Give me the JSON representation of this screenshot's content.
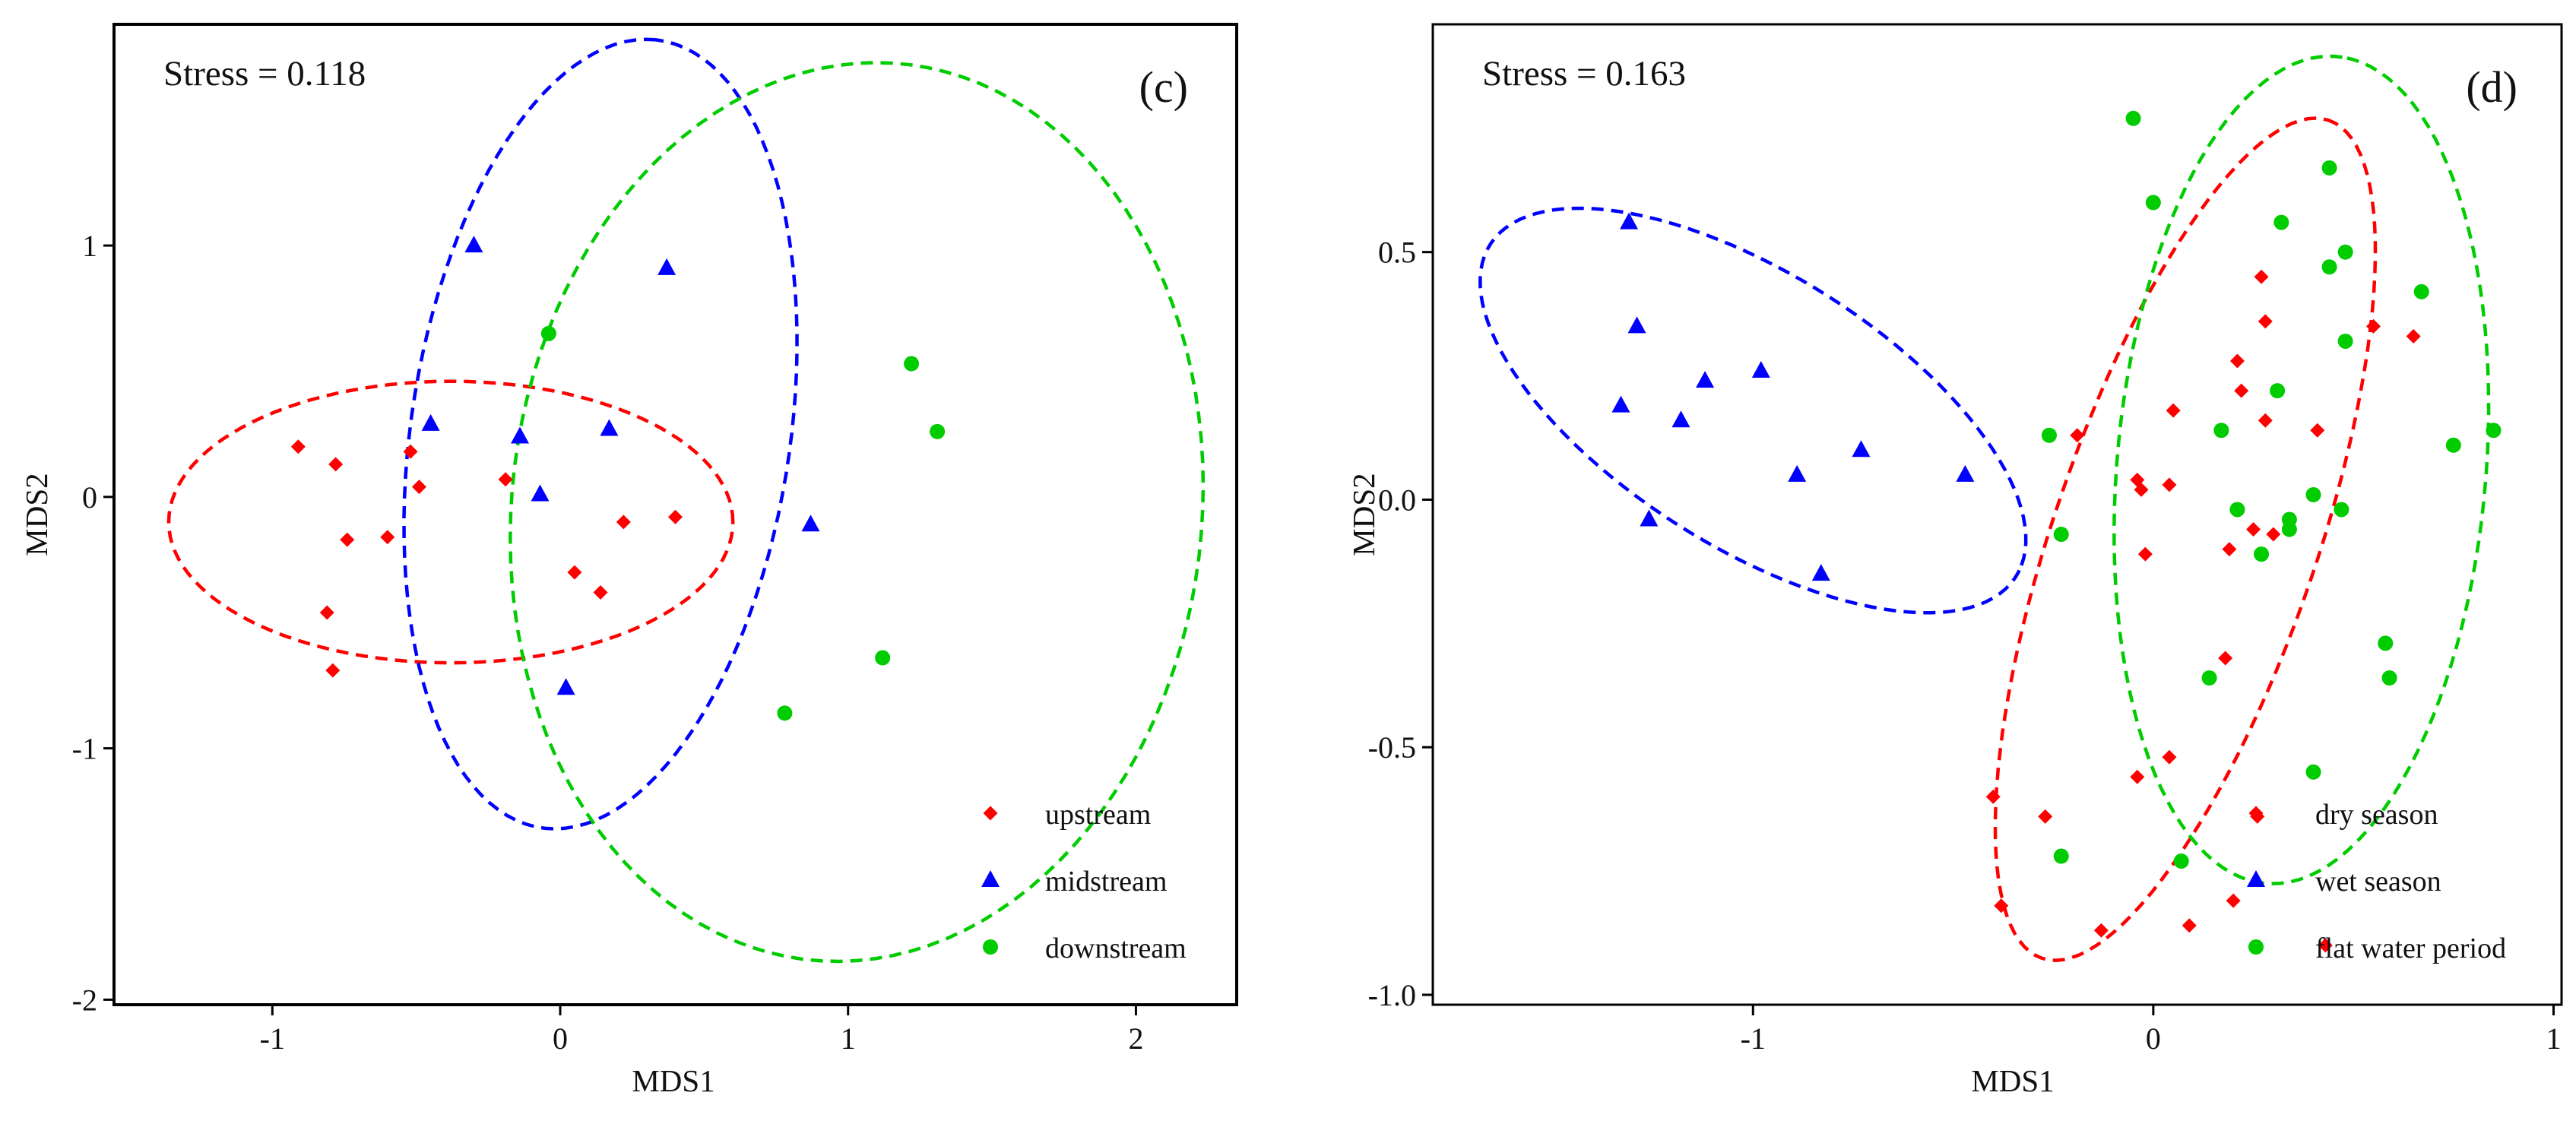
{
  "chart_data": [
    {
      "type": "scatter",
      "panel_label": "(c)",
      "stress_label": "Stress = 0.118",
      "xlabel": "MDS1",
      "ylabel": "MDS2",
      "xlim": [
        -1.55,
        2.35
      ],
      "ylim": [
        -2.02,
        1.88
      ],
      "xticks": [
        -1,
        0,
        1,
        2
      ],
      "xtick_labels": [
        "-1",
        "0",
        "1",
        "2"
      ],
      "yticks": [
        -2,
        -1,
        0,
        1
      ],
      "ytick_labels": [
        "-2",
        "-1",
        "0",
        "1"
      ],
      "grid": false,
      "legend_position": "bottom-right",
      "series": [
        {
          "name": "upstream",
          "marker": "diamond",
          "color": "#ff0000",
          "points": [
            [
              -0.91,
              0.2
            ],
            [
              -0.78,
              0.13
            ],
            [
              -0.74,
              -0.17
            ],
            [
              -0.6,
              -0.16
            ],
            [
              -0.52,
              0.18
            ],
            [
              -0.49,
              0.04
            ],
            [
              -0.81,
              -0.46
            ],
            [
              -0.79,
              -0.69
            ],
            [
              -0.19,
              0.07
            ],
            [
              0.05,
              -0.3
            ],
            [
              0.14,
              -0.38
            ],
            [
              0.22,
              -0.1
            ],
            [
              0.4,
              -0.08
            ]
          ],
          "ellipse": {
            "cx": -0.38,
            "cy": -0.1,
            "rx": 0.98,
            "ry": 0.56,
            "angle_deg": 0
          }
        },
        {
          "name": "midstream",
          "marker": "triangle",
          "color": "#0000ff",
          "points": [
            [
              -0.3,
              1.0
            ],
            [
              0.37,
              0.91
            ],
            [
              -0.45,
              0.29
            ],
            [
              -0.14,
              0.24
            ],
            [
              0.17,
              0.27
            ],
            [
              -0.07,
              0.01
            ],
            [
              0.87,
              -0.11
            ],
            [
              0.02,
              -0.76
            ]
          ],
          "ellipse": {
            "cx": 0.14,
            "cy": 0.25,
            "rx": 1.58,
            "ry": 0.66,
            "angle_deg": 83
          }
        },
        {
          "name": "downstream",
          "marker": "circle",
          "color": "#00cc00",
          "points": [
            [
              -0.04,
              0.65
            ],
            [
              1.22,
              0.53
            ],
            [
              1.31,
              0.26
            ],
            [
              1.12,
              -0.64
            ],
            [
              0.78,
              -0.86
            ]
          ],
          "ellipse": {
            "cx": 1.03,
            "cy": -0.06,
            "rx": 1.79,
            "ry": 1.2,
            "angle_deg": 86
          }
        }
      ]
    },
    {
      "type": "scatter",
      "panel_label": "(d)",
      "stress_label": "Stress = 0.163",
      "xlabel": "MDS1",
      "ylabel": "MDS2",
      "xlim": [
        -1.8,
        1.02
      ],
      "ylim": [
        -1.02,
        0.96
      ],
      "xticks": [
        -1,
        0,
        1
      ],
      "xtick_labels": [
        "-1",
        "0",
        "1"
      ],
      "yticks": [
        -1.0,
        -0.5,
        0.0,
        0.5
      ],
      "ytick_labels": [
        "-1.0",
        "-0.5",
        "0.0",
        "0.5"
      ],
      "grid": false,
      "legend_position": "bottom-right",
      "series": [
        {
          "name": "dry season",
          "marker": "diamond",
          "color": "#ff0000",
          "points": [
            [
              0.27,
              0.45
            ],
            [
              0.28,
              0.36
            ],
            [
              0.21,
              0.28
            ],
            [
              0.22,
              0.22
            ],
            [
              0.28,
              0.16
            ],
            [
              0.41,
              0.14
            ],
            [
              0.55,
              0.35
            ],
            [
              0.65,
              0.33
            ],
            [
              -0.19,
              0.13
            ],
            [
              0.05,
              0.18
            ],
            [
              -0.04,
              0.04
            ],
            [
              -0.03,
              0.02
            ],
            [
              0.04,
              0.03
            ],
            [
              0.19,
              -0.1
            ],
            [
              0.25,
              -0.06
            ],
            [
              0.3,
              -0.07
            ],
            [
              -0.02,
              -0.11
            ],
            [
              0.18,
              -0.32
            ],
            [
              -0.04,
              -0.56
            ],
            [
              0.04,
              -0.52
            ],
            [
              -0.4,
              -0.6
            ],
            [
              -0.27,
              -0.64
            ],
            [
              0.26,
              -0.64
            ],
            [
              -0.38,
              -0.82
            ],
            [
              -0.13,
              -0.87
            ],
            [
              0.09,
              -0.86
            ],
            [
              0.2,
              -0.81
            ],
            [
              0.43,
              -0.9
            ]
          ],
          "ellipse": {
            "cx": 0.08,
            "cy": -0.08,
            "rx": 0.92,
            "ry": 0.32,
            "angle_deg": 66
          }
        },
        {
          "name": "wet season",
          "marker": "triangle",
          "color": "#0000ff",
          "points": [
            [
              -1.31,
              0.56
            ],
            [
              -1.29,
              0.35
            ],
            [
              -1.33,
              0.19
            ],
            [
              -1.12,
              0.24
            ],
            [
              -1.18,
              0.16
            ],
            [
              -0.98,
              0.26
            ],
            [
              -0.73,
              0.1
            ],
            [
              -0.89,
              0.05
            ],
            [
              -0.47,
              0.05
            ],
            [
              -1.26,
              -0.04
            ],
            [
              -0.83,
              -0.15
            ]
          ],
          "ellipse": {
            "cx": -1.0,
            "cy": 0.18,
            "rx": 0.74,
            "ry": 0.29,
            "angle_deg": -25
          }
        },
        {
          "name": "flat water period",
          "marker": "circle",
          "color": "#00cc00",
          "points": [
            [
              -0.05,
              0.77
            ],
            [
              0.0,
              0.6
            ],
            [
              0.44,
              0.67
            ],
            [
              0.32,
              0.56
            ],
            [
              0.48,
              0.5
            ],
            [
              0.44,
              0.47
            ],
            [
              0.67,
              0.42
            ],
            [
              0.48,
              0.32
            ],
            [
              0.31,
              0.22
            ],
            [
              0.17,
              0.14
            ],
            [
              -0.26,
              0.13
            ],
            [
              0.75,
              0.11
            ],
            [
              0.85,
              0.14
            ],
            [
              0.4,
              0.01
            ],
            [
              0.21,
              -0.02
            ],
            [
              0.47,
              -0.02
            ],
            [
              0.34,
              -0.04
            ],
            [
              0.34,
              -0.06
            ],
            [
              -0.23,
              -0.07
            ],
            [
              0.27,
              -0.11
            ],
            [
              0.58,
              -0.29
            ],
            [
              0.59,
              -0.36
            ],
            [
              0.14,
              -0.36
            ],
            [
              0.4,
              -0.55
            ],
            [
              -0.23,
              -0.72
            ],
            [
              0.07,
              -0.73
            ]
          ],
          "ellipse": {
            "cx": 0.37,
            "cy": 0.06,
            "rx": 0.84,
            "ry": 0.46,
            "angle_deg": 83
          }
        }
      ]
    }
  ]
}
